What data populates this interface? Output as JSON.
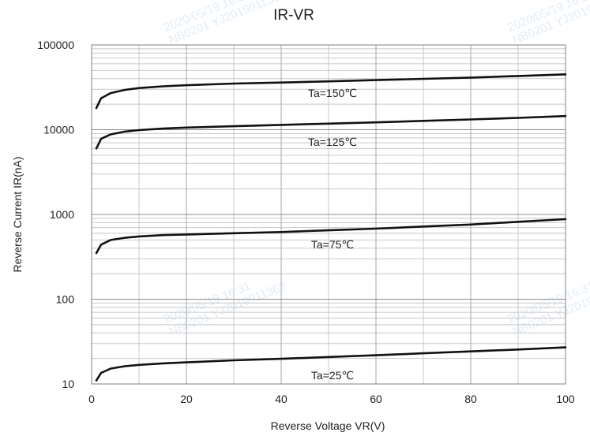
{
  "chart_data": {
    "type": "line",
    "title": "IR-VR",
    "xlabel": "Reverse Voltage   VR(V)",
    "ylabel": "Reverse Current   IR(nA)",
    "xlim": [
      0,
      100
    ],
    "ylim": [
      10,
      100000
    ],
    "yscale": "log",
    "grid": true,
    "x_ticks": [
      0,
      20,
      40,
      60,
      80,
      100
    ],
    "y_ticks": [
      10,
      100,
      1000,
      10000,
      100000
    ],
    "series": [
      {
        "name": "Ta=150℃",
        "x": [
          1,
          2,
          4,
          7,
          10,
          15,
          20,
          30,
          40,
          50,
          60,
          70,
          80,
          90,
          100
        ],
        "y": [
          18000,
          23500,
          27000,
          29500,
          31000,
          32500,
          33500,
          35000,
          36000,
          37200,
          38500,
          39800,
          41200,
          43000,
          45000
        ]
      },
      {
        "name": "Ta=125℃",
        "x": [
          1,
          2,
          4,
          7,
          10,
          15,
          20,
          30,
          40,
          50,
          60,
          70,
          80,
          90,
          100
        ],
        "y": [
          6000,
          7800,
          8800,
          9500,
          9900,
          10300,
          10600,
          11000,
          11400,
          11800,
          12200,
          12700,
          13200,
          13800,
          14500
        ]
      },
      {
        "name": "Ta=75℃",
        "x": [
          1,
          2,
          4,
          7,
          10,
          15,
          20,
          30,
          40,
          50,
          60,
          70,
          80,
          90,
          100
        ],
        "y": [
          350,
          440,
          500,
          530,
          550,
          570,
          580,
          600,
          620,
          650,
          680,
          720,
          760,
          820,
          880
        ]
      },
      {
        "name": "Ta=25℃",
        "x": [
          1,
          2,
          4,
          7,
          10,
          15,
          20,
          30,
          40,
          50,
          60,
          70,
          80,
          90,
          100
        ],
        "y": [
          11,
          13.5,
          15.2,
          16.2,
          16.8,
          17.5,
          18,
          19,
          19.8,
          20.8,
          21.8,
          23,
          24.2,
          25.5,
          27
        ]
      }
    ],
    "annotations": [
      "Ta=150℃",
      "Ta=125℃",
      "Ta=75℃",
      "Ta=25℃"
    ],
    "watermark": [
      "2020/05/19  16:31",
      "NB0201  YJ2019011363"
    ]
  }
}
